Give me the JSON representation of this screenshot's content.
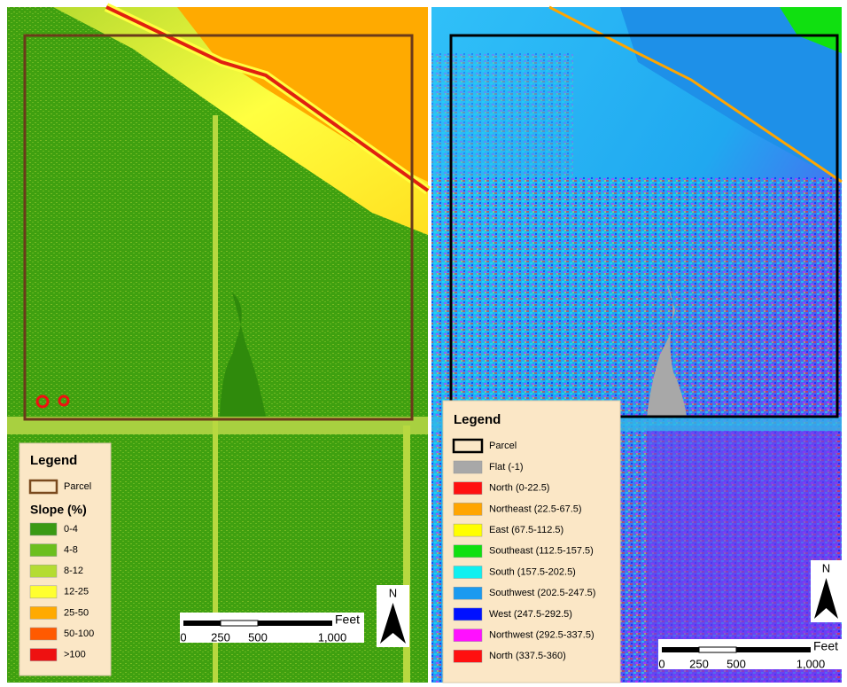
{
  "left_map": {
    "legend": {
      "title": "Legend",
      "parcel": {
        "label": "Parcel",
        "color": "#7a4a1e"
      },
      "heading": "Slope (%)",
      "items": [
        {
          "label": "0-4",
          "color": "#3a9a14"
        },
        {
          "label": "4-8",
          "color": "#6cbf1e"
        },
        {
          "label": "8-12",
          "color": "#b4dc32"
        },
        {
          "label": "12-25",
          "color": "#ffff30"
        },
        {
          "label": "25-50",
          "color": "#ffaa00"
        },
        {
          "label": "50-100",
          "color": "#ff5a00"
        },
        {
          "label": ">100",
          "color": "#ee1111"
        }
      ]
    },
    "scale_bar": {
      "unit": "Feet",
      "labels": [
        "0",
        "250",
        "500",
        "1,000"
      ]
    },
    "north_label": "N"
  },
  "right_map": {
    "legend": {
      "title": "Legend",
      "parcel": {
        "label": "Parcel",
        "color": "#000000"
      },
      "items": [
        {
          "label": "Flat (-1)",
          "color": "#a8a8a8"
        },
        {
          "label": "North (0-22.5)",
          "color": "#ff1010"
        },
        {
          "label": "Northeast (22.5-67.5)",
          "color": "#ffa500"
        },
        {
          "label": "East (67.5-112.5)",
          "color": "#ffff00"
        },
        {
          "label": "Southeast (112.5-157.5)",
          "color": "#10e010"
        },
        {
          "label": "South (157.5-202.5)",
          "color": "#10f0f0"
        },
        {
          "label": "Southwest (202.5-247.5)",
          "color": "#1a9af0"
        },
        {
          "label": "West (247.5-292.5)",
          "color": "#0010ff"
        },
        {
          "label": "Northwest (292.5-337.5)",
          "color": "#ff10ff"
        },
        {
          "label": "North (337.5-360)",
          "color": "#ff1010"
        }
      ]
    },
    "scale_bar": {
      "unit": "Feet",
      "labels": [
        "0",
        "250",
        "500",
        "1,000"
      ]
    },
    "north_label": "N"
  }
}
